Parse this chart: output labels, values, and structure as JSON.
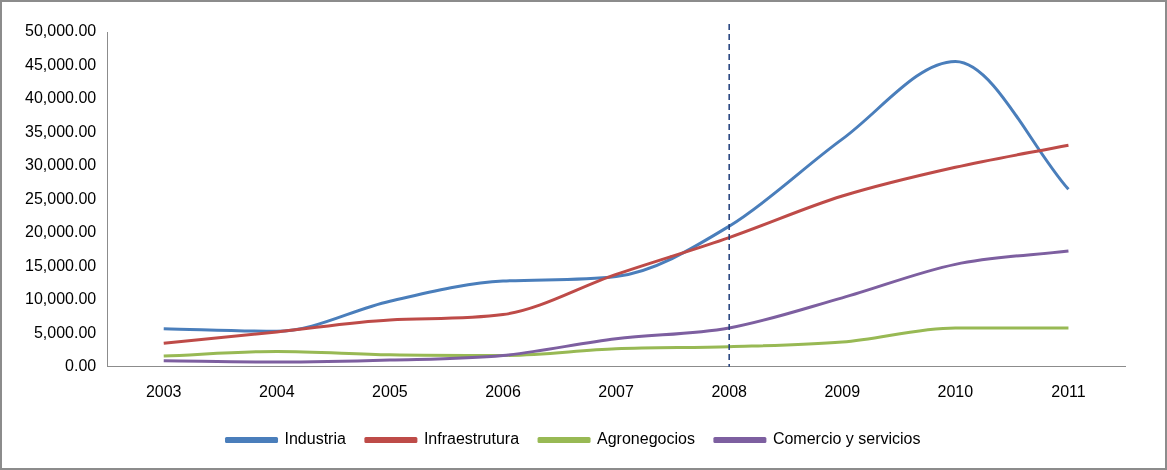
{
  "chart_data": {
    "type": "line",
    "categories": [
      "2003",
      "2004",
      "2005",
      "2006",
      "2007",
      "2008",
      "2009",
      "2010",
      "2011"
    ],
    "series": [
      {
        "name": "Industria",
        "color": "#4a7ebb",
        "values": [
          5700,
          5300,
          9800,
          12800,
          13500,
          21000,
          34000,
          45600,
          26500
        ]
      },
      {
        "name": "Infraestrutura",
        "color": "#be4b48",
        "values": [
          3500,
          5200,
          7000,
          7800,
          13800,
          19300,
          25500,
          29800,
          33100
        ]
      },
      {
        "name": "Agronegocios",
        "color": "#98b954",
        "values": [
          1600,
          2300,
          1800,
          1700,
          2700,
          3000,
          3700,
          5800,
          5800
        ]
      },
      {
        "name": "Comercio y servicios",
        "color": "#7d5fa0",
        "values": [
          900,
          700,
          1000,
          1700,
          4200,
          5800,
          10300,
          15300,
          17300
        ]
      }
    ],
    "ylim": [
      0,
      50000
    ],
    "yticks": [
      {
        "value": 0,
        "label": "0.00"
      },
      {
        "value": 5000,
        "label": "5,000.00"
      },
      {
        "value": 10000,
        "label": "10,000.00"
      },
      {
        "value": 15000,
        "label": "15,000.00"
      },
      {
        "value": 20000,
        "label": "20,000.00"
      },
      {
        "value": 25000,
        "label": "25,000.00"
      },
      {
        "value": 30000,
        "label": "30,000.00"
      },
      {
        "value": 35000,
        "label": "35,000.00"
      },
      {
        "value": 40000,
        "label": "40,000.00"
      },
      {
        "value": 45000,
        "label": "45,000.00"
      },
      {
        "value": 50000,
        "label": "50,000.00"
      }
    ],
    "ref_lines": [
      {
        "axis": "x",
        "value": "2008",
        "color": "#1f3d7a",
        "line_style": "dashed"
      }
    ],
    "grid": false,
    "legend": "bottom",
    "marker": "none",
    "line_style": "solid"
  }
}
